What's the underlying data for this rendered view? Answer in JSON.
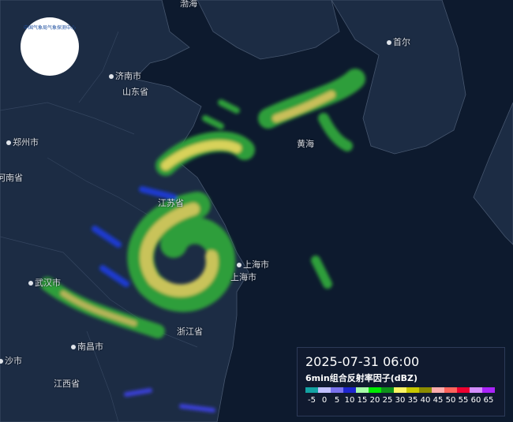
{
  "logo": "中国气象局气象探测中心",
  "map": {
    "labels": [
      {
        "text": "渤海",
        "city": false
      },
      {
        "text": "首尔",
        "city": true
      },
      {
        "text": "济南市",
        "city": true
      },
      {
        "text": "山东省",
        "city": false
      },
      {
        "text": "郑州市",
        "city": true
      },
      {
        "text": "河南省",
        "city": false
      },
      {
        "text": "黄海",
        "city": false
      },
      {
        "text": "江苏省",
        "city": false
      },
      {
        "text": "上海市",
        "city": true
      },
      {
        "text": "上海市",
        "city": false
      },
      {
        "text": "武汉市",
        "city": true
      },
      {
        "text": "浙江省",
        "city": false
      },
      {
        "text": "南昌市",
        "city": true
      },
      {
        "text": "沙市",
        "city": true
      },
      {
        "text": "江西省",
        "city": false
      }
    ]
  },
  "legend": {
    "time": "2025-07-31 06:00",
    "title": "6min组合反射率因子(dBZ)",
    "levels": [
      {
        "label": "-5",
        "color": "#14a3a3"
      },
      {
        "label": "0",
        "color": "#c0c0fe"
      },
      {
        "label": "5",
        "color": "#7a72ee"
      },
      {
        "label": "10",
        "color": "#1e26d0"
      },
      {
        "label": "15",
        "color": "#a6fca8"
      },
      {
        "label": "20",
        "color": "#00ea00"
      },
      {
        "label": "25",
        "color": "#10921a"
      },
      {
        "label": "30",
        "color": "#fcf464"
      },
      {
        "label": "35",
        "color": "#c8c800"
      },
      {
        "label": "40",
        "color": "#8c8c00"
      },
      {
        "label": "45",
        "color": "#feacac"
      },
      {
        "label": "50",
        "color": "#fe645c"
      },
      {
        "label": "55",
        "color": "#ee0230"
      },
      {
        "label": "60",
        "color": "#d48efe"
      },
      {
        "label": "65",
        "color": "#aa24fa"
      }
    ]
  }
}
